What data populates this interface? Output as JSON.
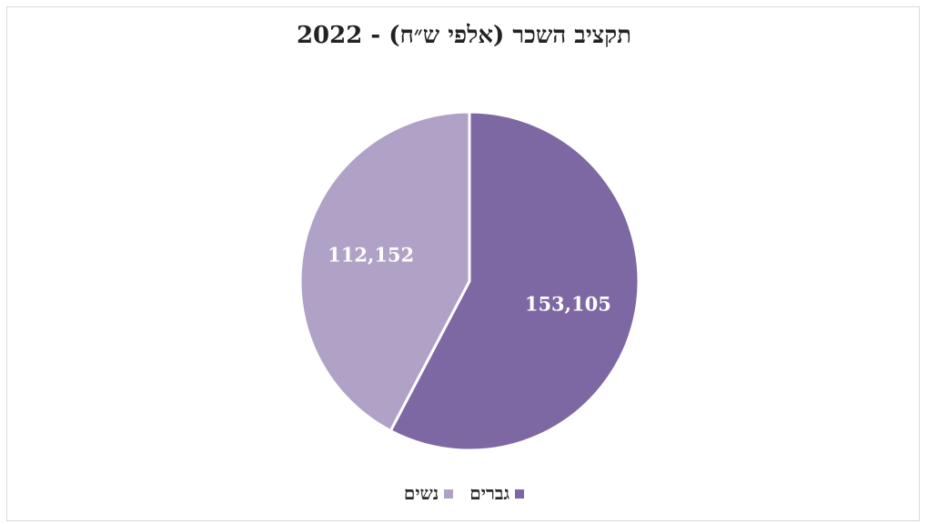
{
  "chart_data": {
    "type": "pie",
    "title": "תקציב השכר (אלפי ש״ח) - 2022",
    "categories": [
      "גברים",
      "נשים"
    ],
    "values": [
      153105,
      112152
    ],
    "value_labels": [
      "153,105",
      "112,152"
    ],
    "colors": [
      "#7e68a3",
      "#b0a2c7"
    ],
    "legend_position": "bottom",
    "start_angle": "top",
    "direction": "clockwise"
  }
}
